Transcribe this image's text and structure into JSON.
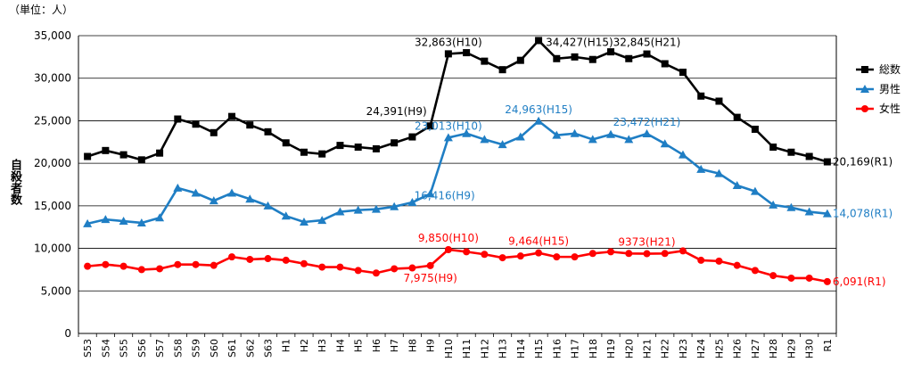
{
  "chart_data": {
    "type": "line",
    "unit_label": "（単位：人）",
    "ylabel": "自殺者数",
    "xlabel": "",
    "ylim": [
      0,
      35000
    ],
    "yticks": [
      0,
      5000,
      10000,
      15000,
      20000,
      25000,
      30000,
      35000
    ],
    "ytick_labels": [
      "0",
      "5,000",
      "10,000",
      "15,000",
      "20,000",
      "25,000",
      "30,000",
      "35,000"
    ],
    "grid": "horizontal",
    "legend_position": "right",
    "categories": [
      "S53",
      "S54",
      "S55",
      "S56",
      "S57",
      "S58",
      "S59",
      "S60",
      "S61",
      "S62",
      "S63",
      "H1",
      "H2",
      "H3",
      "H4",
      "H5",
      "H6",
      "H7",
      "H8",
      "H9",
      "H10",
      "H11",
      "H12",
      "H13",
      "H14",
      "H15",
      "H16",
      "H17",
      "H18",
      "H19",
      "H20",
      "H21",
      "H22",
      "H23",
      "H24",
      "H25",
      "H26",
      "H27",
      "H28",
      "H29",
      "H30",
      "R1"
    ],
    "series": [
      {
        "name": "総数",
        "color": "#000000",
        "marker": "square",
        "values": [
          20800,
          21500,
          21000,
          20400,
          21200,
          25200,
          24600,
          23600,
          25500,
          24500,
          23700,
          22400,
          21300,
          21100,
          22100,
          21900,
          21700,
          22400,
          23100,
          24391,
          32863,
          33000,
          32000,
          31000,
          32100,
          34427,
          32300,
          32500,
          32200,
          33100,
          32300,
          32845,
          31700,
          30700,
          27900,
          27300,
          25400,
          24000,
          21900,
          21300,
          20800,
          20169
        ]
      },
      {
        "name": "男性",
        "color": "#1f7ec4",
        "marker": "triangle",
        "values": [
          12900,
          13400,
          13200,
          13000,
          13600,
          17100,
          16500,
          15600,
          16500,
          15800,
          15000,
          13800,
          13100,
          13300,
          14300,
          14500,
          14600,
          14900,
          15400,
          16416,
          23013,
          23500,
          22800,
          22200,
          23100,
          24963,
          23300,
          23500,
          22800,
          23400,
          22800,
          23472,
          22300,
          21000,
          19300,
          18800,
          17400,
          16700,
          15100,
          14800,
          14300,
          14078
        ]
      },
      {
        "name": "女性",
        "color": "#ff0000",
        "marker": "circle",
        "values": [
          7900,
          8100,
          7900,
          7500,
          7600,
          8100,
          8100,
          8000,
          9000,
          8700,
          8800,
          8600,
          8200,
          7800,
          7800,
          7400,
          7100,
          7600,
          7700,
          7975,
          9850,
          9600,
          9300,
          8900,
          9100,
          9464,
          9000,
          9000,
          9400,
          9600,
          9400,
          9373,
          9400,
          9700,
          8600,
          8500,
          8000,
          7400,
          6800,
          6500,
          6500,
          6091
        ]
      }
    ],
    "annotations": [
      {
        "series": 0,
        "index": 19,
        "text": "24,391(H9)",
        "pos": "above-left"
      },
      {
        "series": 0,
        "index": 20,
        "text": "32,863(H10)",
        "pos": "above"
      },
      {
        "series": 0,
        "index": 25,
        "text": "34,427(H15)",
        "pos": "right"
      },
      {
        "series": 0,
        "index": 31,
        "text": "32,845(H21)",
        "pos": "above"
      },
      {
        "series": 0,
        "index": 41,
        "text": "20,169(R1)",
        "pos": "right"
      },
      {
        "series": 1,
        "index": 20,
        "text": "23,013(H10)",
        "pos": "above"
      },
      {
        "series": 1,
        "index": 25,
        "text": "24,963(H15)",
        "pos": "above"
      },
      {
        "series": 1,
        "index": 31,
        "text": "23,472(H21)",
        "pos": "above"
      },
      {
        "series": 1,
        "index": 19,
        "text": "16,416(H9)",
        "pos": "right"
      },
      {
        "series": 1,
        "index": 41,
        "text": "14,078(R1)",
        "pos": "right"
      },
      {
        "series": 2,
        "index": 20,
        "text": "9,850(H10)",
        "pos": "above"
      },
      {
        "series": 2,
        "index": 25,
        "text": "9,464(H15)",
        "pos": "above"
      },
      {
        "series": 2,
        "index": 31,
        "text": "9373(H21)",
        "pos": "above"
      },
      {
        "series": 2,
        "index": 19,
        "text": "7,975(H9)",
        "pos": "below"
      },
      {
        "series": 2,
        "index": 41,
        "text": "6,091(R1)",
        "pos": "right"
      }
    ]
  }
}
